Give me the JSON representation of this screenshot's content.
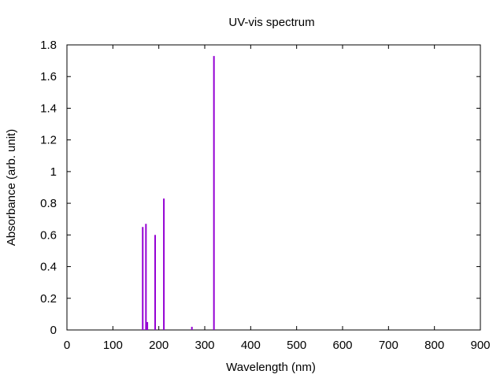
{
  "chart_data": {
    "type": "bar",
    "title": "UV-vis spectrum",
    "xlabel": "Wavelength (nm)",
    "ylabel": "Absorbance (arb. unit)",
    "xlim": [
      0,
      900
    ],
    "ylim": [
      0,
      1.8
    ],
    "xticks": [
      "0",
      "100",
      "200",
      "300",
      "400",
      "500",
      "600",
      "700",
      "800",
      "900"
    ],
    "yticks": [
      "0",
      "0.2",
      "0.4",
      "0.6",
      "0.8",
      "1",
      "1.2",
      "1.4",
      "1.6",
      "1.8"
    ],
    "grid": false,
    "bar_color": "#9400d3",
    "series": [
      {
        "x": [
          165,
          172,
          175,
          192,
          211,
          272,
          320
        ],
        "values": [
          0.65,
          0.67,
          0.05,
          0.6,
          0.83,
          0.02,
          1.73
        ]
      }
    ]
  }
}
